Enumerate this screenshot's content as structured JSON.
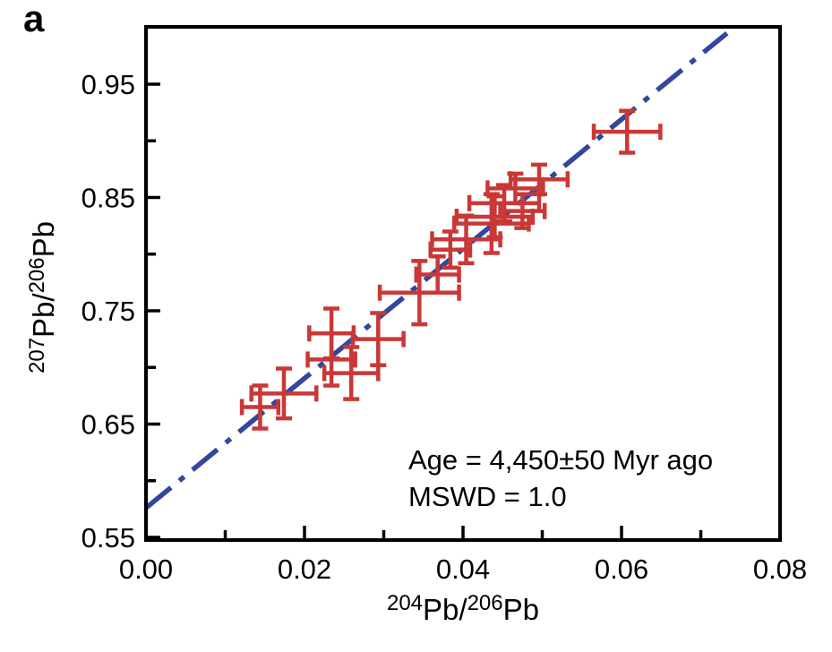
{
  "panel_label": "a",
  "annotation": {
    "line1": "Age = 4,450±50 Myr ago",
    "line2": "MSWD = 1.0"
  },
  "axes": {
    "x": {
      "sup1": "204",
      "base1": "Pb/",
      "sup2": "206",
      "base2": "Pb"
    },
    "y": {
      "sup1": "207",
      "base1": "Pb/",
      "sup2": "206",
      "base2": "Pb"
    }
  },
  "colors": {
    "data_red": "#C93836",
    "isochron_blue": "#33479C",
    "axis_black": "#000000",
    "background": "#FFFFFF"
  },
  "chart_data": {
    "type": "scatter",
    "title": "",
    "xlabel": "204Pb/206Pb",
    "ylabel": "207Pb/206Pb",
    "xlim": [
      0.0,
      0.08
    ],
    "ylim": [
      0.55,
      1.0
    ],
    "grid": false,
    "legend": "none",
    "x_major_ticks": [
      0.0,
      0.02,
      0.04,
      0.06,
      0.08
    ],
    "x_tick_labels": [
      "0.00",
      "0.02",
      "0.04",
      "0.06",
      "0.08"
    ],
    "x_minor_ticks": [
      0.01,
      0.03,
      0.05,
      0.07
    ],
    "y_major_ticks": [
      0.55,
      0.65,
      0.75,
      0.85,
      0.95
    ],
    "y_tick_labels": [
      "0.55",
      "0.65",
      "0.75",
      "0.85",
      "0.95"
    ],
    "y_minor_ticks": [
      0.6,
      0.7,
      0.8,
      0.9
    ],
    "points": [
      {
        "x": 0.0144,
        "y": 0.665,
        "xerr": 0.0023,
        "yerr": 0.019
      },
      {
        "x": 0.0174,
        "y": 0.677,
        "xerr": 0.0041,
        "yerr": 0.022
      },
      {
        "x": 0.0234,
        "y": 0.73,
        "xerr": 0.0028,
        "yerr": 0.022
      },
      {
        "x": 0.0234,
        "y": 0.707,
        "xerr": 0.003,
        "yerr": 0.023
      },
      {
        "x": 0.0259,
        "y": 0.695,
        "xerr": 0.0034,
        "yerr": 0.023
      },
      {
        "x": 0.0293,
        "y": 0.725,
        "xerr": 0.0032,
        "yerr": 0.023
      },
      {
        "x": 0.0345,
        "y": 0.766,
        "xerr": 0.005,
        "yerr": 0.028
      },
      {
        "x": 0.0368,
        "y": 0.782,
        "xerr": 0.0027,
        "yerr": 0.016
      },
      {
        "x": 0.0384,
        "y": 0.804,
        "xerr": 0.0025,
        "yerr": 0.016
      },
      {
        "x": 0.0404,
        "y": 0.813,
        "xerr": 0.0043,
        "yerr": 0.021
      },
      {
        "x": 0.0436,
        "y": 0.827,
        "xerr": 0.0047,
        "yerr": 0.026
      },
      {
        "x": 0.044,
        "y": 0.833,
        "xerr": 0.0048,
        "yerr": 0.018
      },
      {
        "x": 0.0452,
        "y": 0.845,
        "xerr": 0.0044,
        "yerr": 0.016
      },
      {
        "x": 0.0466,
        "y": 0.858,
        "xerr": 0.0035,
        "yerr": 0.013
      },
      {
        "x": 0.0475,
        "y": 0.838,
        "xerr": 0.0028,
        "yerr": 0.015
      },
      {
        "x": 0.0496,
        "y": 0.866,
        "xerr": 0.0036,
        "yerr": 0.013
      },
      {
        "x": 0.0607,
        "y": 0.908,
        "xerr": 0.0042,
        "yerr": 0.0185
      }
    ],
    "isochron_line": {
      "style": "dash-dot",
      "x1": 0.0,
      "y1": 0.576,
      "x2": 0.0733,
      "y2": 0.995
    }
  }
}
